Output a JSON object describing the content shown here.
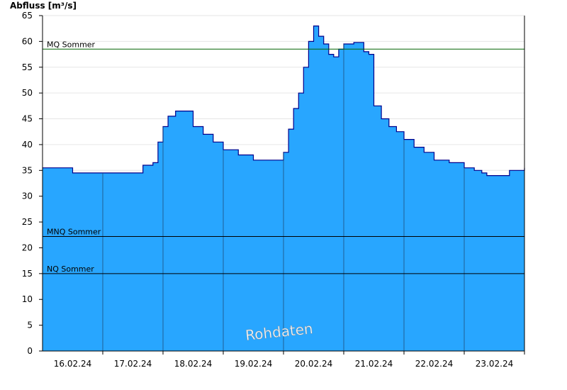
{
  "chart_data": {
    "type": "area",
    "ylabel": "Abfluss [m³/s]",
    "ylim": [
      0,
      65
    ],
    "yticks": [
      0,
      5,
      10,
      15,
      20,
      25,
      30,
      35,
      40,
      45,
      50,
      55,
      60,
      65
    ],
    "xlim": [
      "2024-02-15T12:00",
      "2024-02-23T12:00"
    ],
    "day_separators": [
      "2024-02-16T12:00",
      "2024-02-17T12:00",
      "2024-02-18T12:00",
      "2024-02-19T12:00",
      "2024-02-20T12:00",
      "2024-02-21T12:00",
      "2024-02-22T12:00",
      "2024-02-23T12:00"
    ],
    "xtick_labels": [
      {
        "x": "2024-02-16T00:00",
        "label": "16.02.24"
      },
      {
        "x": "2024-02-17T00:00",
        "label": "17.02.24"
      },
      {
        "x": "2024-02-18T00:00",
        "label": "18.02.24"
      },
      {
        "x": "2024-02-19T00:00",
        "label": "19.02.24"
      },
      {
        "x": "2024-02-20T00:00",
        "label": "20.02.24"
      },
      {
        "x": "2024-02-21T00:00",
        "label": "21.02.24"
      },
      {
        "x": "2024-02-22T00:00",
        "label": "22.02.24"
      },
      {
        "x": "2024-02-23T00:00",
        "label": "23.02.24"
      }
    ],
    "grid": true,
    "fill_color": "#28a6ff",
    "line_color": "#00008b",
    "reference_lines": [
      {
        "label": "MQ Sommer",
        "value": 58.5,
        "color": "#006400"
      },
      {
        "label": "MNQ Sommer",
        "value": 22.2,
        "color": "#000000"
      },
      {
        "label": "NQ Sommer",
        "value": 15.0,
        "color": "#000000"
      }
    ],
    "annotation": "Rohdaten",
    "series": [
      {
        "x": [
          "2024-02-15T12:00",
          "2024-02-15T18:00",
          "2024-02-16T00:00",
          "2024-02-16T06:00",
          "2024-02-16T12:00",
          "2024-02-16T18:00",
          "2024-02-17T00:00",
          "2024-02-17T04:00",
          "2024-02-17T08:00",
          "2024-02-17T10:00",
          "2024-02-17T12:00",
          "2024-02-17T14:00",
          "2024-02-17T17:00",
          "2024-02-17T20:00",
          "2024-02-18T00:00",
          "2024-02-18T04:00",
          "2024-02-18T08:00",
          "2024-02-18T12:00",
          "2024-02-18T18:00",
          "2024-02-19T00:00",
          "2024-02-19T03:00",
          "2024-02-19T06:00",
          "2024-02-19T09:00",
          "2024-02-19T12:00",
          "2024-02-19T14:00",
          "2024-02-19T16:00",
          "2024-02-19T18:00",
          "2024-02-19T20:00",
          "2024-02-19T22:00",
          "2024-02-20T00:00",
          "2024-02-20T02:00",
          "2024-02-20T04:00",
          "2024-02-20T06:00",
          "2024-02-20T08:00",
          "2024-02-20T10:00",
          "2024-02-20T12:00",
          "2024-02-20T16:00",
          "2024-02-20T19:00",
          "2024-02-20T20:00",
          "2024-02-20T22:00",
          "2024-02-21T00:00",
          "2024-02-21T03:00",
          "2024-02-21T06:00",
          "2024-02-21T09:00",
          "2024-02-21T12:00",
          "2024-02-21T16:00",
          "2024-02-21T20:00",
          "2024-02-22T00:00",
          "2024-02-22T06:00",
          "2024-02-22T12:00",
          "2024-02-22T16:00",
          "2024-02-22T19:00",
          "2024-02-22T21:00",
          "2024-02-23T00:00",
          "2024-02-23T06:00",
          "2024-02-23T12:00"
        ],
        "values": [
          35.5,
          35.5,
          34.5,
          34.5,
          34.5,
          34.5,
          34.5,
          36.0,
          36.5,
          40.5,
          43.5,
          45.5,
          46.5,
          46.5,
          43.5,
          42.0,
          40.5,
          39.0,
          38.0,
          37.0,
          37.0,
          37.0,
          37.0,
          38.5,
          43.0,
          47.0,
          50.0,
          55.0,
          60.0,
          63.0,
          61.0,
          59.5,
          57.5,
          57.0,
          58.5,
          59.5,
          59.8,
          59.8,
          58.0,
          57.5,
          47.5,
          45.0,
          43.5,
          42.5,
          41.0,
          39.5,
          38.5,
          37.0,
          36.5,
          35.5,
          35.0,
          34.5,
          34.0,
          34.0,
          35.0,
          35.5
        ]
      }
    ]
  }
}
